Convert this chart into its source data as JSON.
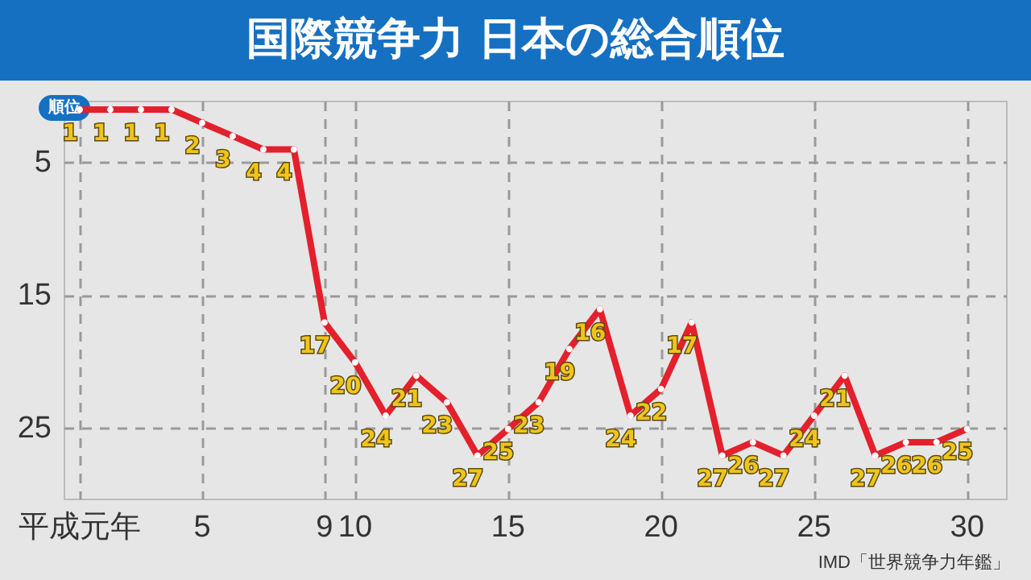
{
  "chart_data": {
    "type": "line",
    "title": "国際競争力 日本の総合順位",
    "ylabel": "順位",
    "annotations": [
      "IMD「世界競争力年鑑」"
    ],
    "x": [
      1,
      2,
      3,
      4,
      5,
      6,
      7,
      8,
      9,
      10,
      11,
      12,
      13,
      14,
      15,
      16,
      17,
      18,
      19,
      20,
      21,
      22,
      23,
      24,
      25,
      26,
      27,
      28,
      29,
      30
    ],
    "series": [
      {
        "color": "#e3202b",
        "values": [
          1,
          1,
          1,
          1,
          2,
          3,
          4,
          4,
          17,
          20,
          24,
          21,
          23,
          27,
          25,
          23,
          19,
          16,
          24,
          22,
          17,
          27,
          26,
          27,
          24,
          21,
          27,
          26,
          26,
          25
        ]
      }
    ],
    "xlim": [
      0.5,
      31.3
    ],
    "xticks": [
      {
        "value": 1,
        "label": "平成元年"
      },
      5,
      9,
      10,
      15,
      20,
      25,
      30
    ],
    "ylim": [
      30.3,
      0.4
    ],
    "yticks": [
      5,
      15,
      25
    ],
    "grid": true,
    "data_labels": true,
    "marker": "circle",
    "line_style": "solid"
  }
}
